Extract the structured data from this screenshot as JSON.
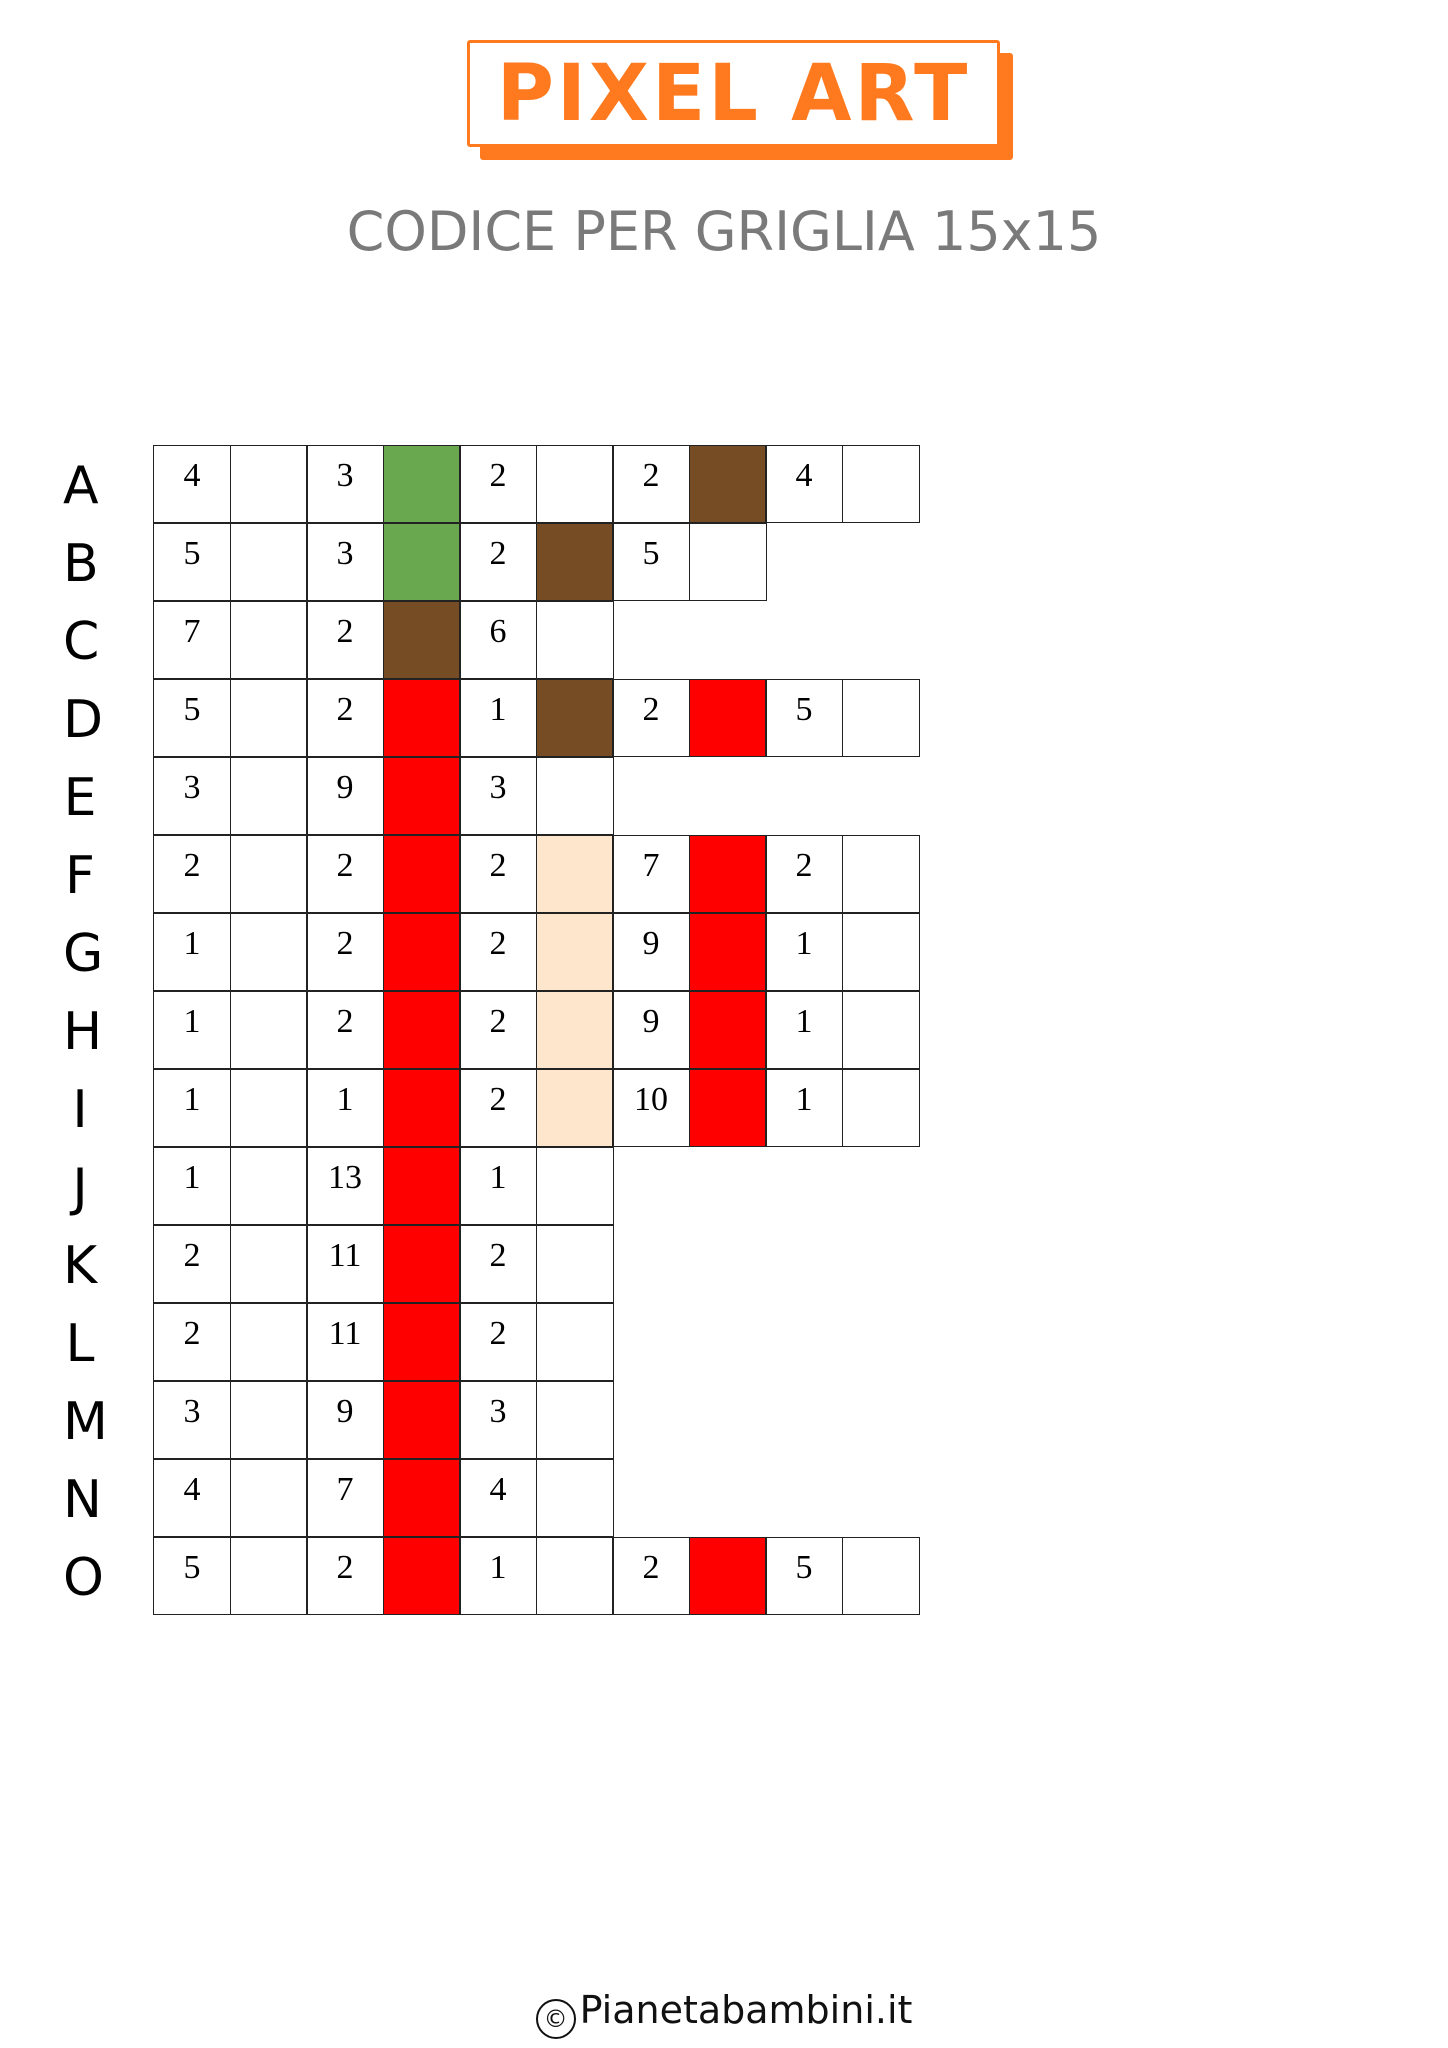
{
  "header": {
    "title": "PIXEL ART",
    "subtitle": "CODICE PER GRIGLIA 15x15",
    "accent_color": "#ff7a1f"
  },
  "colors": {
    "green": "#6aa84f",
    "brown": "#754c24",
    "red": "#ff0000",
    "peach": "#fde6cc"
  },
  "grid": {
    "rows": [
      {
        "label": "A",
        "cells": [
          {
            "t": "4"
          },
          {
            "t": ""
          },
          {
            "t": "3"
          },
          {
            "fill": "green"
          },
          {
            "t": "2"
          },
          {
            "t": ""
          },
          {
            "t": "2"
          },
          {
            "fill": "brown"
          },
          {
            "t": "4"
          },
          {
            "t": ""
          }
        ]
      },
      {
        "label": "B",
        "cells": [
          {
            "t": "5"
          },
          {
            "t": ""
          },
          {
            "t": "3"
          },
          {
            "fill": "green"
          },
          {
            "t": "2"
          },
          {
            "fill": "brown"
          },
          {
            "t": "5"
          },
          {
            "t": ""
          }
        ]
      },
      {
        "label": "C",
        "cells": [
          {
            "t": "7"
          },
          {
            "t": ""
          },
          {
            "t": "2"
          },
          {
            "fill": "brown"
          },
          {
            "t": "6"
          },
          {
            "t": ""
          }
        ]
      },
      {
        "label": "D",
        "cells": [
          {
            "t": "5"
          },
          {
            "t": ""
          },
          {
            "t": "2"
          },
          {
            "fill": "red"
          },
          {
            "t": "1"
          },
          {
            "fill": "brown"
          },
          {
            "t": "2"
          },
          {
            "fill": "red"
          },
          {
            "t": "5"
          },
          {
            "t": ""
          }
        ]
      },
      {
        "label": "E",
        "cells": [
          {
            "t": "3"
          },
          {
            "t": ""
          },
          {
            "t": "9"
          },
          {
            "fill": "red"
          },
          {
            "t": "3"
          },
          {
            "t": ""
          }
        ]
      },
      {
        "label": "F",
        "cells": [
          {
            "t": "2"
          },
          {
            "t": ""
          },
          {
            "t": "2"
          },
          {
            "fill": "red"
          },
          {
            "t": "2"
          },
          {
            "fill": "peach"
          },
          {
            "t": "7"
          },
          {
            "fill": "red"
          },
          {
            "t": "2"
          },
          {
            "t": ""
          }
        ]
      },
      {
        "label": "G",
        "cells": [
          {
            "t": "1"
          },
          {
            "t": ""
          },
          {
            "t": "2"
          },
          {
            "fill": "red"
          },
          {
            "t": "2"
          },
          {
            "fill": "peach"
          },
          {
            "t": "9"
          },
          {
            "fill": "red"
          },
          {
            "t": "1"
          },
          {
            "t": ""
          }
        ]
      },
      {
        "label": "H",
        "cells": [
          {
            "t": "1"
          },
          {
            "t": ""
          },
          {
            "t": "2"
          },
          {
            "fill": "red"
          },
          {
            "t": "2"
          },
          {
            "fill": "peach"
          },
          {
            "t": "9"
          },
          {
            "fill": "red"
          },
          {
            "t": "1"
          },
          {
            "t": ""
          }
        ]
      },
      {
        "label": "I",
        "cells": [
          {
            "t": "1"
          },
          {
            "t": ""
          },
          {
            "t": "1"
          },
          {
            "fill": "red"
          },
          {
            "t": "2"
          },
          {
            "fill": "peach"
          },
          {
            "t": "10"
          },
          {
            "fill": "red"
          },
          {
            "t": "1"
          },
          {
            "t": ""
          }
        ]
      },
      {
        "label": "J",
        "cells": [
          {
            "t": "1"
          },
          {
            "t": ""
          },
          {
            "t": "13"
          },
          {
            "fill": "red"
          },
          {
            "t": "1"
          },
          {
            "t": ""
          }
        ]
      },
      {
        "label": "K",
        "cells": [
          {
            "t": "2"
          },
          {
            "t": ""
          },
          {
            "t": "11"
          },
          {
            "fill": "red"
          },
          {
            "t": "2"
          },
          {
            "t": ""
          }
        ]
      },
      {
        "label": "L",
        "cells": [
          {
            "t": "2"
          },
          {
            "t": ""
          },
          {
            "t": "11"
          },
          {
            "fill": "red"
          },
          {
            "t": "2"
          },
          {
            "t": ""
          }
        ]
      },
      {
        "label": "M",
        "cells": [
          {
            "t": "3"
          },
          {
            "t": ""
          },
          {
            "t": "9"
          },
          {
            "fill": "red"
          },
          {
            "t": "3"
          },
          {
            "t": ""
          }
        ]
      },
      {
        "label": "N",
        "cells": [
          {
            "t": "4"
          },
          {
            "t": ""
          },
          {
            "t": "7"
          },
          {
            "fill": "red"
          },
          {
            "t": "4"
          },
          {
            "t": ""
          }
        ]
      },
      {
        "label": "O",
        "cells": [
          {
            "t": "5"
          },
          {
            "t": ""
          },
          {
            "t": "2"
          },
          {
            "fill": "red"
          },
          {
            "t": "1"
          },
          {
            "t": ""
          },
          {
            "t": "2"
          },
          {
            "fill": "red"
          },
          {
            "t": "5"
          },
          {
            "t": ""
          }
        ]
      }
    ]
  },
  "footer": {
    "copyright_symbol": "©",
    "site": "Pianetabambini.it"
  }
}
